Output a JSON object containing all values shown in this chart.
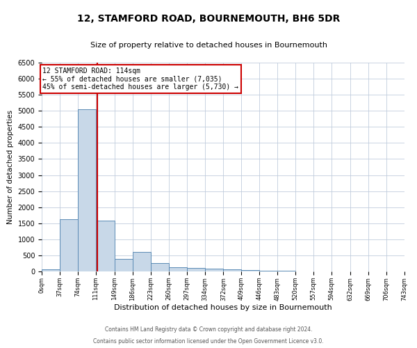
{
  "title": "12, STAMFORD ROAD, BOURNEMOUTH, BH6 5DR",
  "subtitle": "Size of property relative to detached houses in Bournemouth",
  "xlabel": "Distribution of detached houses by size in Bournemouth",
  "ylabel": "Number of detached properties",
  "footer_line1": "Contains HM Land Registry data © Crown copyright and database right 2024.",
  "footer_line2": "Contains public sector information licensed under the Open Government Licence v3.0.",
  "annotation_title": "12 STAMFORD ROAD: 114sqm",
  "annotation_line2": "← 55% of detached houses are smaller (7,035)",
  "annotation_line3": "45% of semi-detached houses are larger (5,730) →",
  "property_size": 114,
  "bin_edges": [
    0,
    37,
    74,
    111,
    149,
    186,
    223,
    260,
    297,
    334,
    372,
    409,
    446,
    483,
    520,
    557,
    594,
    632,
    669,
    706,
    743
  ],
  "bin_counts": [
    75,
    1620,
    5050,
    1580,
    400,
    600,
    270,
    135,
    110,
    90,
    60,
    45,
    20,
    15,
    10,
    5,
    3,
    2,
    1,
    1
  ],
  "bar_color": "#c8d8e8",
  "bar_edge_color": "#5a8ab5",
  "vline_color": "#cc0000",
  "annotation_box_color": "#cc0000",
  "background_color": "#ffffff",
  "grid_color": "#c0ccdd",
  "ylim": [
    0,
    6500
  ],
  "yticks": [
    0,
    500,
    1000,
    1500,
    2000,
    2500,
    3000,
    3500,
    4000,
    4500,
    5000,
    5500,
    6000,
    6500
  ],
  "title_fontsize": 10,
  "subtitle_fontsize": 8,
  "ylabel_fontsize": 7.5,
  "xlabel_fontsize": 8,
  "ytick_fontsize": 7,
  "xtick_fontsize": 6,
  "footer_fontsize": 5.5,
  "annotation_fontsize": 7
}
